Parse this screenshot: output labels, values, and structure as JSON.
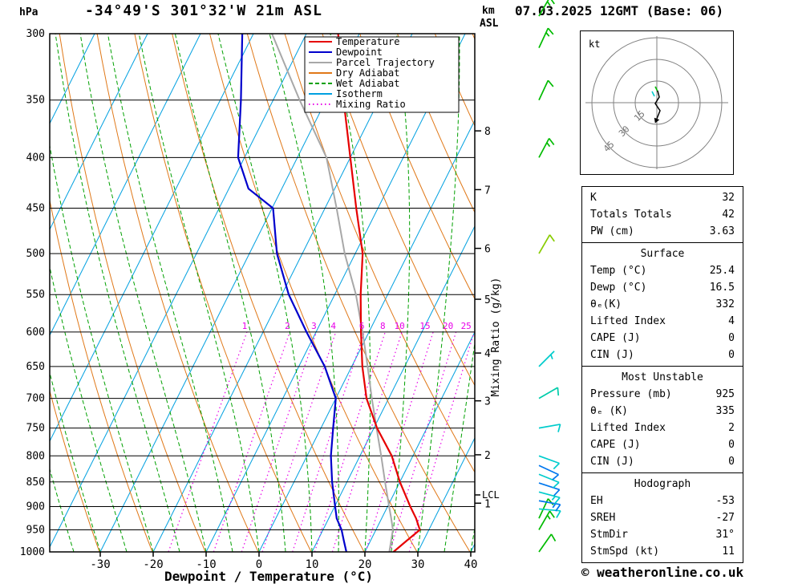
{
  "header": {
    "pressure_unit": "hPa",
    "station_title": "-34°49'S 301°32'W 21m ASL",
    "altitude_unit_km": "km",
    "altitude_unit_asl": "ASL",
    "run_title": "07.03.2025 12GMT (Base: 06)"
  },
  "chart_data": {
    "type": "skewt-log-p-sounding",
    "xlabel": "Dewpoint / Temperature (°C)",
    "right_axis_label": "Mixing Ratio (g/kg)",
    "pressure_ticks": [
      300,
      350,
      400,
      450,
      500,
      550,
      600,
      650,
      700,
      750,
      800,
      850,
      900,
      950,
      1000
    ],
    "temp_ticks": [
      -30,
      -20,
      -10,
      0,
      10,
      20,
      30,
      40
    ],
    "km_ticks": [
      {
        "km": 1,
        "p": 893
      },
      {
        "km": 2,
        "p": 798
      },
      {
        "km": 3,
        "p": 704
      },
      {
        "km": 4,
        "p": 630
      },
      {
        "km": 5,
        "p": 556
      },
      {
        "km": 6,
        "p": 494
      },
      {
        "km": 7,
        "p": 431
      },
      {
        "km": 8,
        "p": 376
      }
    ],
    "lcl": {
      "label": "LCL",
      "p": 876
    },
    "mixing_ratio_values": [
      1,
      2,
      3,
      4,
      6,
      8,
      10,
      15,
      20,
      25
    ],
    "legend": [
      {
        "label": "Temperature",
        "color": "#e60000",
        "dash": ""
      },
      {
        "label": "Dewpoint",
        "color": "#0000cc",
        "dash": ""
      },
      {
        "label": "Parcel Trajectory",
        "color": "#a8a8a8",
        "dash": ""
      },
      {
        "label": "Dry Adiabat",
        "color": "#e07818",
        "dash": ""
      },
      {
        "label": "Wet Adiabat",
        "color": "#00a000",
        "dash": "5,3"
      },
      {
        "label": "Isotherm",
        "color": "#00a0e0",
        "dash": ""
      },
      {
        "label": "Mixing Ratio",
        "color": "#e800e8",
        "dash": "1.5,3.5"
      }
    ],
    "profiles": {
      "temperature": [
        [
          1000,
          25.4
        ],
        [
          975,
          26.8
        ],
        [
          950,
          28.3
        ],
        [
          925,
          26.5
        ],
        [
          900,
          24.3
        ],
        [
          850,
          20.0
        ],
        [
          800,
          16.0
        ],
        [
          750,
          10.6
        ],
        [
          700,
          5.8
        ],
        [
          650,
          2.0
        ],
        [
          600,
          -1.5
        ],
        [
          550,
          -5.1
        ],
        [
          500,
          -8.6
        ],
        [
          450,
          -14.1
        ],
        [
          400,
          -20.0
        ],
        [
          350,
          -26.7
        ],
        [
          300,
          -34.0
        ]
      ],
      "dewpoint": [
        [
          1000,
          16.5
        ],
        [
          975,
          15.0
        ],
        [
          950,
          13.5
        ],
        [
          925,
          11.5
        ],
        [
          900,
          10.1
        ],
        [
          850,
          7.2
        ],
        [
          800,
          4.5
        ],
        [
          750,
          2.3
        ],
        [
          700,
          0.0
        ],
        [
          650,
          -5.1
        ],
        [
          600,
          -11.8
        ],
        [
          550,
          -18.7
        ],
        [
          500,
          -24.8
        ],
        [
          450,
          -29.8
        ],
        [
          430,
          -36.3
        ],
        [
          400,
          -41.2
        ],
        [
          350,
          -46.1
        ],
        [
          300,
          -52.1
        ]
      ],
      "parcel": [
        [
          1000,
          24.6
        ],
        [
          950,
          23.2
        ],
        [
          925,
          21.8
        ],
        [
          900,
          20.3
        ],
        [
          850,
          17.2
        ],
        [
          800,
          14.0
        ],
        [
          750,
          10.5
        ],
        [
          700,
          6.8
        ],
        [
          650,
          3.0
        ],
        [
          600,
          -1.2
        ],
        [
          550,
          -6.0
        ],
        [
          500,
          -12.0
        ],
        [
          450,
          -17.8
        ],
        [
          400,
          -24.5
        ],
        [
          350,
          -35.0
        ],
        [
          300,
          -46.5
        ]
      ]
    },
    "winds": [
      {
        "p": 1000,
        "spd": 10,
        "dir": 35,
        "color": "#00bb00"
      },
      {
        "p": 950,
        "spd": 15,
        "dir": 30,
        "color": "#00bb00"
      },
      {
        "p": 925,
        "spd": 10,
        "dir": 25,
        "color": "#00bb00"
      },
      {
        "p": 905,
        "spd": 10,
        "dir": 95,
        "color": "#00cccc"
      },
      {
        "p": 888,
        "spd": 15,
        "dir": 100,
        "color": "#0077ee"
      },
      {
        "p": 870,
        "spd": 15,
        "dir": 105,
        "color": "#00cccc"
      },
      {
        "p": 852,
        "spd": 10,
        "dir": 108,
        "color": "#0077ee"
      },
      {
        "p": 835,
        "spd": 10,
        "dir": 112,
        "color": "#00cccc"
      },
      {
        "p": 818,
        "spd": 10,
        "dir": 115,
        "color": "#0077ee"
      },
      {
        "p": 800,
        "spd": 10,
        "dir": 110,
        "color": "#00cccc"
      },
      {
        "p": 750,
        "spd": 10,
        "dir": 80,
        "color": "#00cccc"
      },
      {
        "p": 700,
        "spd": 8,
        "dir": 60,
        "color": "#00ccaa"
      },
      {
        "p": 650,
        "spd": 5,
        "dir": 45,
        "color": "#00cccc"
      },
      {
        "p": 500,
        "spd": 10,
        "dir": 30,
        "color": "#88cc00"
      },
      {
        "p": 400,
        "spd": 15,
        "dir": 28,
        "color": "#00bb00"
      },
      {
        "p": 350,
        "spd": 10,
        "dir": 25,
        "color": "#00bb00"
      },
      {
        "p": 310,
        "spd": 15,
        "dir": 25,
        "color": "#00bb00"
      },
      {
        "p": 288,
        "spd": 15,
        "dir": 30,
        "color": "#00bb00"
      }
    ]
  },
  "hodograph": {
    "unit_label": "kt",
    "rings": [
      {
        "value": 15,
        "r": 27
      },
      {
        "value": 30,
        "r": 54
      },
      {
        "value": 45,
        "r": 81
      }
    ],
    "trace": [
      [
        1,
        -15
      ],
      [
        3,
        -7
      ],
      [
        -2,
        1
      ],
      [
        4,
        10
      ],
      [
        0,
        20
      ]
    ],
    "aux_traces": [
      {
        "color": "#00bb00",
        "points": [
          [
            -2,
            -20
          ],
          [
            1,
            -14
          ]
        ]
      },
      {
        "color": "#00cccc",
        "points": [
          [
            -6,
            -14
          ],
          [
            -3,
            -8
          ]
        ]
      }
    ]
  },
  "stats": {
    "sections": [
      {
        "title": null,
        "rows": [
          [
            "K",
            "32"
          ],
          [
            "Totals Totals",
            "42"
          ],
          [
            "PW (cm)",
            "3.63"
          ]
        ]
      },
      {
        "title": "Surface",
        "rows": [
          [
            "Temp (°C)",
            "25.4"
          ],
          [
            "Dewp (°C)",
            "16.5"
          ],
          [
            "θₑ(K)",
            "332"
          ],
          [
            "Lifted Index",
            "4"
          ],
          [
            "CAPE (J)",
            "0"
          ],
          [
            "CIN (J)",
            "0"
          ]
        ]
      },
      {
        "title": "Most Unstable",
        "rows": [
          [
            "Pressure (mb)",
            "925"
          ],
          [
            "θₑ (K)",
            "335"
          ],
          [
            "Lifted Index",
            "2"
          ],
          [
            "CAPE (J)",
            "0"
          ],
          [
            "CIN (J)",
            "0"
          ]
        ]
      },
      {
        "title": "Hodograph",
        "rows": [
          [
            "EH",
            "-53"
          ],
          [
            "SREH",
            "-27"
          ],
          [
            "StmDir",
            "31°"
          ],
          [
            "StmSpd (kt)",
            "11"
          ]
        ]
      }
    ]
  },
  "footer": {
    "copyright": "© weatheronline.co.uk"
  }
}
